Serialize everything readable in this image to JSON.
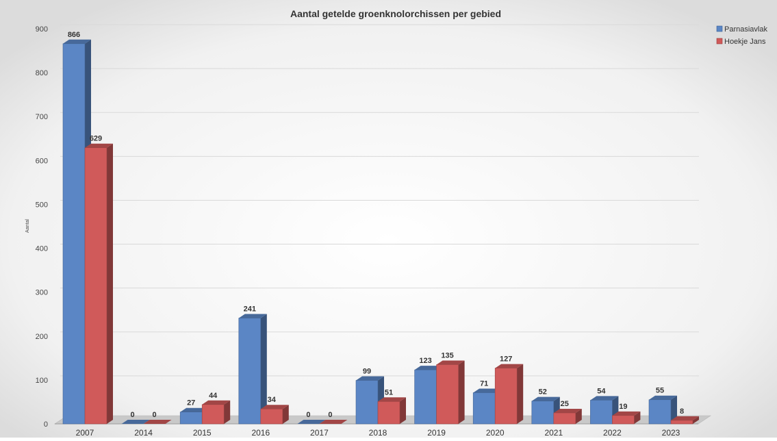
{
  "chart_data": {
    "type": "bar",
    "title": "Aantal getelde groenknolorchissen per gebied",
    "xlabel": "",
    "ylabel": "Aantal",
    "ylim": [
      0,
      900
    ],
    "yticks": [
      0,
      100,
      200,
      300,
      400,
      500,
      600,
      700,
      800,
      900
    ],
    "grid": true,
    "legend_position": "top-right",
    "categories": [
      "2007",
      "2014",
      "2015",
      "2016",
      "2017",
      "2018",
      "2019",
      "2020",
      "2021",
      "2022",
      "2023"
    ],
    "series": [
      {
        "name": "Parnasiavlak",
        "color": "#5b86c5",
        "values": [
          866,
          0,
          27,
          241,
          0,
          99,
          123,
          71,
          52,
          54,
          55
        ]
      },
      {
        "name": "Hoekje Jans",
        "color": "#d05a5a",
        "values": [
          629,
          0,
          44,
          34,
          0,
          51,
          135,
          127,
          25,
          19,
          8
        ]
      }
    ]
  }
}
